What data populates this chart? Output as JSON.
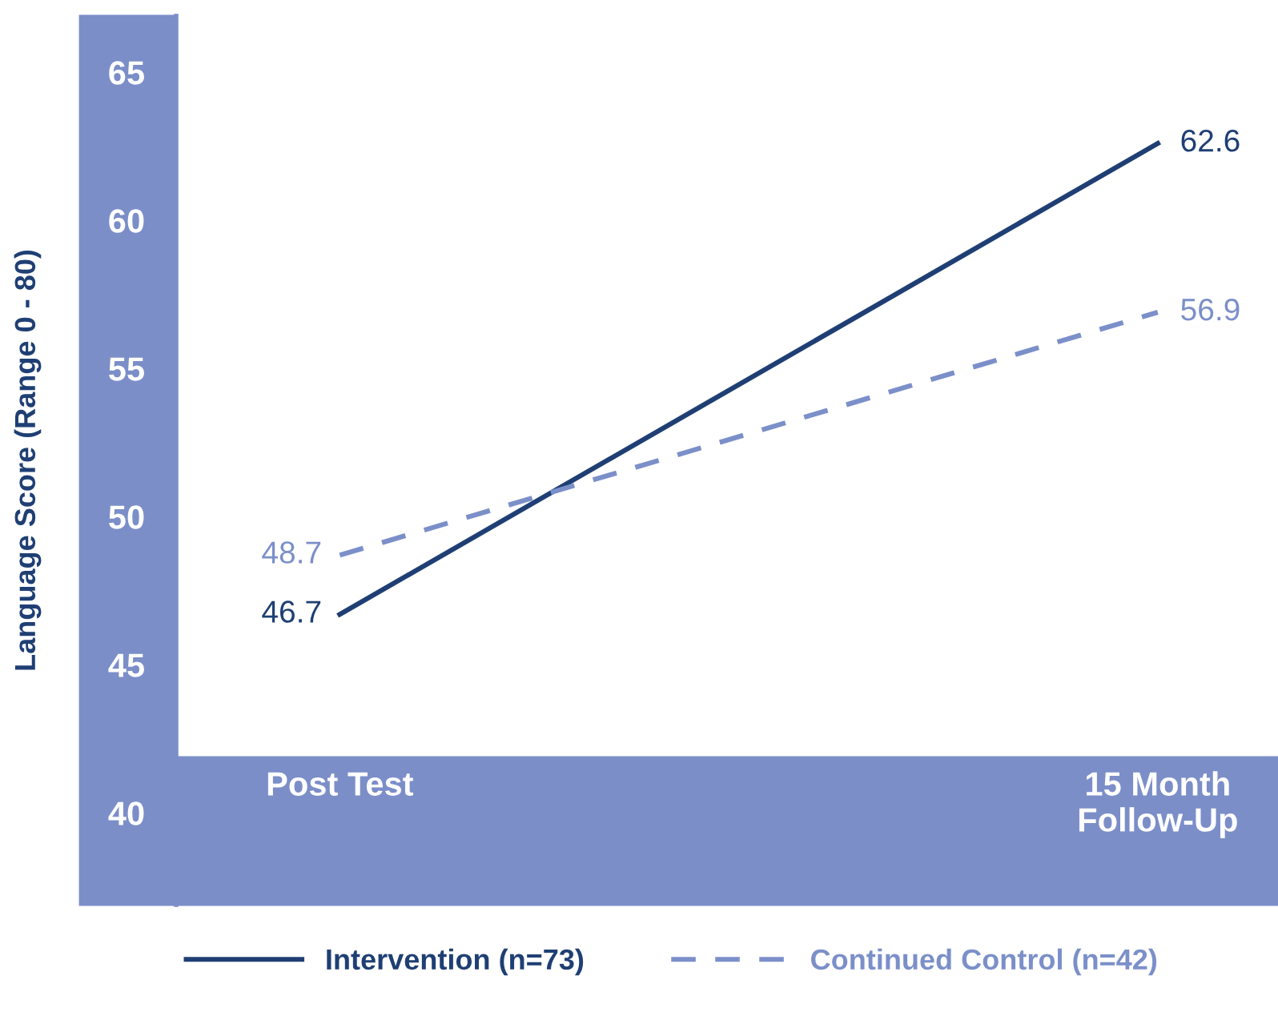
{
  "chart_data": {
    "type": "line",
    "ylabel": "Language Score (Range 0 - 80)",
    "categories": [
      "Post Test",
      "15 Month\nFollow-Up"
    ],
    "series": [
      {
        "name": "Intervention (n=73)",
        "color": "#1f3f74",
        "values": [
          46.7,
          62.6
        ],
        "line_style": "solid",
        "value_labels": [
          "46.7",
          "62.6"
        ]
      },
      {
        "name": "Continued Control (n=42)",
        "color": "#7b8fc9",
        "values": [
          48.7,
          56.9
        ],
        "line_style": "dashed",
        "value_labels": [
          "48.7",
          "56.9"
        ]
      }
    ],
    "ylim": [
      36.9,
      66.9
    ],
    "yticks": [
      40,
      45,
      50,
      55,
      60,
      65
    ],
    "grid": false,
    "legend": "bottom",
    "marker": "none"
  }
}
